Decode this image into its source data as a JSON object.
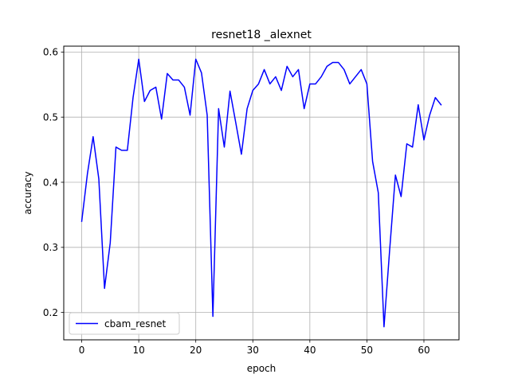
{
  "chart_data": {
    "type": "line",
    "title": "resnet18 _alexnet",
    "xlabel": "epoch",
    "ylabel": "accuracy",
    "xlim": [
      -3.15,
      66.15
    ],
    "ylim": [
      0.158,
      0.609
    ],
    "xticks": [
      0,
      10,
      20,
      30,
      40,
      50,
      60
    ],
    "xtick_labels": [
      "0",
      "10",
      "20",
      "30",
      "40",
      "50",
      "60"
    ],
    "yticks": [
      0.2,
      0.3,
      0.4,
      0.5,
      0.6
    ],
    "ytick_labels": [
      "0.2",
      "0.3",
      "0.4",
      "0.5",
      "0.6"
    ],
    "grid": true,
    "legend_position": "lower-left",
    "series": [
      {
        "name": "cbam_resnet",
        "color": "#0000ff",
        "x": [
          0,
          1,
          2,
          3,
          4,
          5,
          6,
          7,
          8,
          9,
          10,
          11,
          12,
          13,
          14,
          15,
          16,
          17,
          18,
          19,
          20,
          21,
          22,
          23,
          24,
          25,
          26,
          27,
          28,
          29,
          30,
          31,
          32,
          33,
          34,
          35,
          36,
          37,
          38,
          39,
          40,
          41,
          42,
          43,
          44,
          45,
          46,
          47,
          48,
          49,
          50,
          51,
          52,
          53,
          54,
          55,
          56,
          57,
          58,
          59,
          60,
          61,
          62,
          63
        ],
        "y": [
          0.34,
          0.413,
          0.47,
          0.405,
          0.237,
          0.307,
          0.454,
          0.449,
          0.449,
          0.53,
          0.589,
          0.524,
          0.541,
          0.546,
          0.497,
          0.567,
          0.557,
          0.557,
          0.546,
          0.503,
          0.589,
          0.568,
          0.503,
          0.194,
          0.513,
          0.454,
          0.54,
          0.492,
          0.443,
          0.513,
          0.541,
          0.551,
          0.573,
          0.551,
          0.562,
          0.541,
          0.578,
          0.562,
          0.573,
          0.513,
          0.551,
          0.551,
          0.562,
          0.578,
          0.584,
          0.584,
          0.573,
          0.551,
          0.562,
          0.573,
          0.551,
          0.432,
          0.384,
          0.178,
          0.297,
          0.411,
          0.378,
          0.459,
          0.454,
          0.519,
          0.465,
          0.503,
          0.53,
          0.519
        ]
      }
    ]
  }
}
